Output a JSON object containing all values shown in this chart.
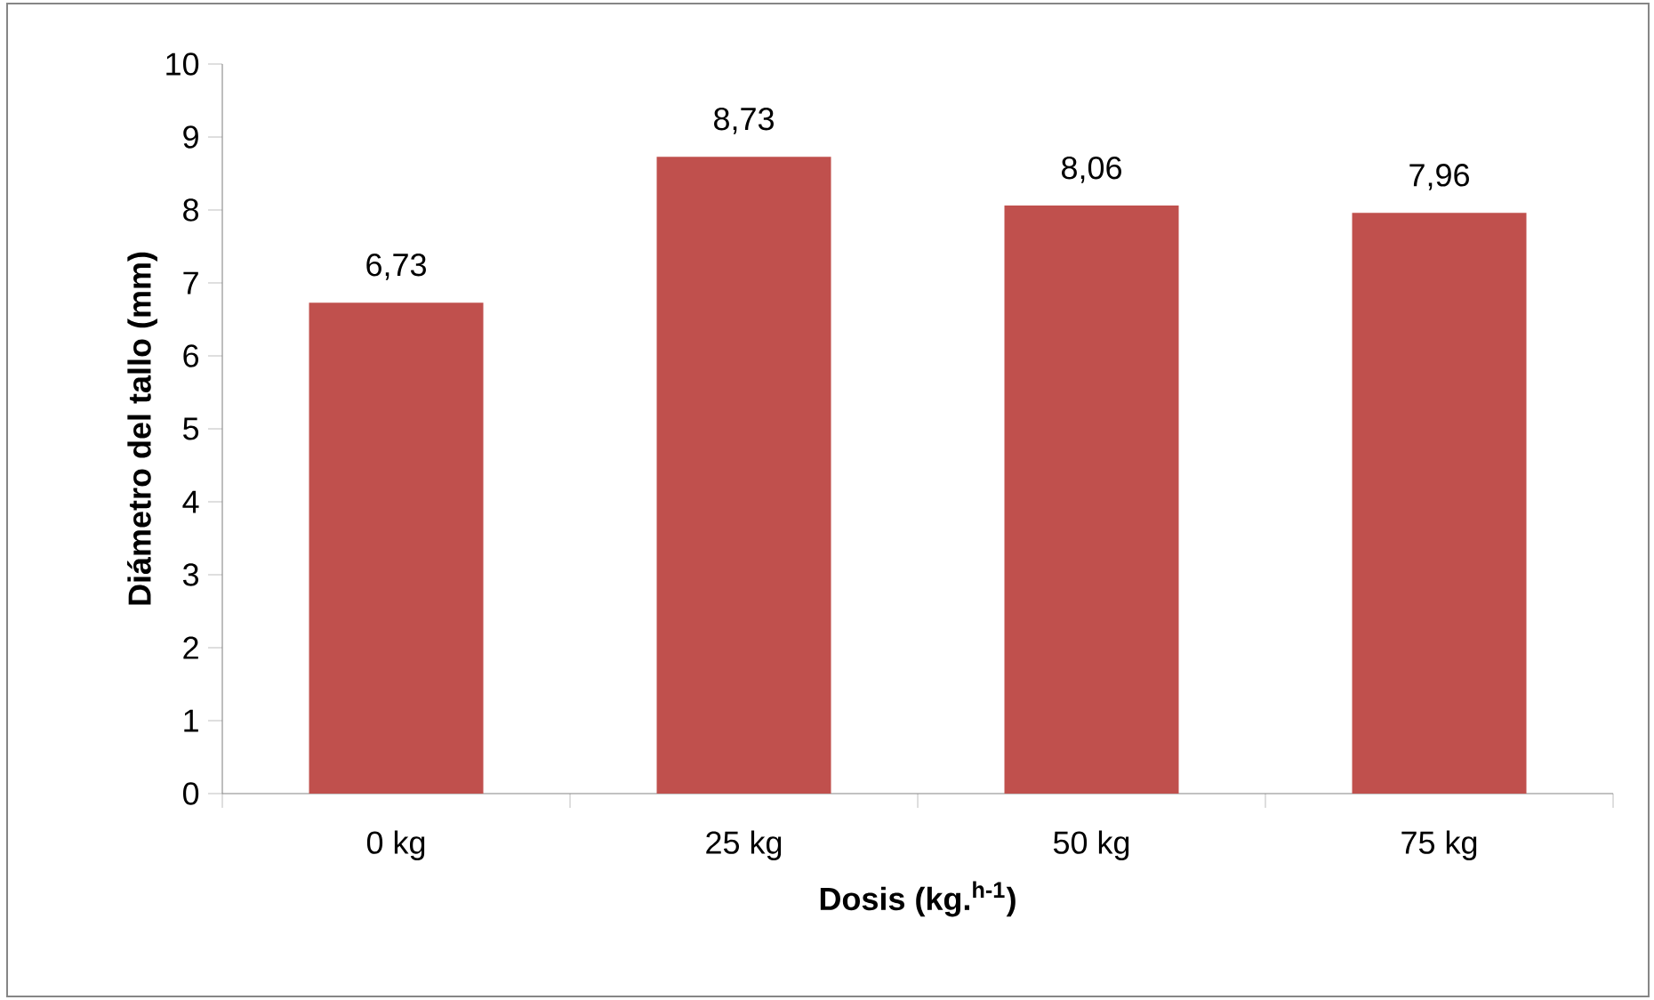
{
  "chart_data": {
    "type": "bar",
    "xlabel": "Dosis (kg.$^{h-1}$)",
    "ylabel": "Diámetro del tallo (mm)",
    "categories": [
      "0 kg",
      "25 kg",
      "50 kg",
      "75 kg"
    ],
    "values": [
      6.73,
      8.73,
      8.06,
      7.96
    ],
    "value_labels": [
      "6,73",
      "8,73",
      "8,06",
      "7,96"
    ],
    "color": "#c0504d",
    "ylim": [
      0,
      10
    ],
    "yticks": [
      0,
      1,
      2,
      3,
      4,
      5,
      6,
      7,
      8,
      9,
      10
    ]
  }
}
